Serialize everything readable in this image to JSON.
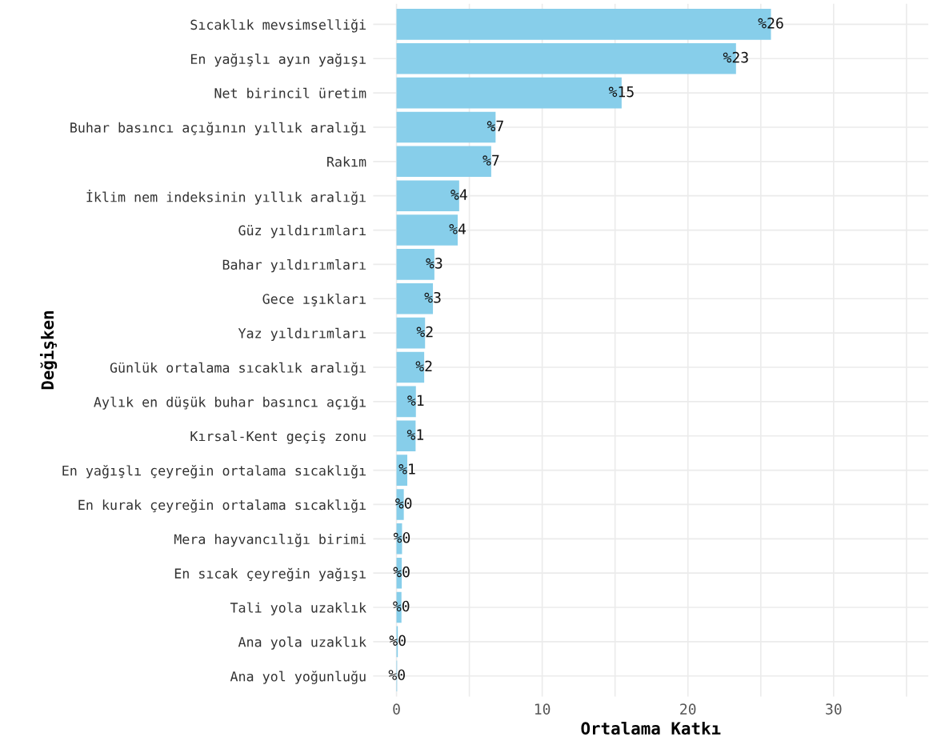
{
  "chart_data": {
    "type": "bar",
    "orientation": "horizontal",
    "xlabel": "Ortalama Katkı",
    "ylabel": "Değişken",
    "categories": [
      "Sıcaklık mevsimselliği",
      "En yağışlı ayın yağışı",
      "Net birincil üretim",
      "Buhar basıncı açığının yıllık aralığı",
      "Rakım",
      "İklim nem indeksinin yıllık aralığı",
      "Güz yıldırımları",
      "Bahar yıldırımları",
      "Gece ışıkları",
      "Yaz yıldırımları",
      "Günlük ortalama sıcaklık aralığı",
      "Aylık en düşük buhar basıncı açığı",
      "Kırsal-Kent geçiş zonu",
      "En yağışlı çeyreğin ortalama sıcaklığı",
      "En kurak çeyreğin ortalama sıcaklığı",
      "Mera hayvancılığı birimi",
      "En sıcak çeyreğin yağışı",
      "Tali yola uzaklık",
      "Ana yola uzaklık",
      "Ana yol yoğunluğu"
    ],
    "values": [
      25.7,
      23.3,
      15.45,
      6.8,
      6.5,
      4.3,
      4.2,
      2.6,
      2.5,
      1.96,
      1.9,
      1.33,
      1.31,
      0.74,
      0.5,
      0.38,
      0.36,
      0.34,
      0.09,
      0.04
    ],
    "value_labels": [
      "%26",
      "%23",
      "%15",
      "%7",
      "%7",
      "%4",
      "%4",
      "%3",
      "%3",
      "%2",
      "%2",
      "%1",
      "%1",
      "%1",
      "%0",
      "%0",
      "%0",
      "%0",
      "%0",
      "%0"
    ],
    "color": "#87ceea",
    "xlim": [
      -1.6,
      36.5
    ],
    "xticks": [
      0,
      {
        "value": 5,
        "label": null
      },
      10,
      {
        "value": 15,
        "label": null
      },
      20,
      {
        "value": 25,
        "label": null
      },
      30,
      {
        "value": 35,
        "label": null
      }
    ],
    "grid": true,
    "legend": false
  }
}
